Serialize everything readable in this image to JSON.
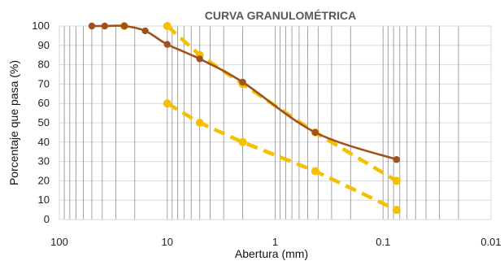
{
  "chart_data": {
    "type": "line",
    "title": "CURVA GRANULOMÉTRICA",
    "xlabel": "Abertura (mm)",
    "ylabel": "Porcentaje que pasa  (%)",
    "x_scale": "log",
    "x_reversed": true,
    "xlim": [
      100,
      0.01
    ],
    "ylim": [
      0,
      100
    ],
    "x_tick_labels": [
      "100",
      "10",
      "1",
      "0.1",
      "0.01"
    ],
    "x_tick_values": [
      100,
      10,
      1,
      0.1,
      0.01
    ],
    "y_tick_labels": [
      "0",
      "10",
      "20",
      "30",
      "40",
      "50",
      "60",
      "70",
      "80",
      "90",
      "100"
    ],
    "y_tick_values": [
      0,
      10,
      20,
      30,
      40,
      50,
      60,
      70,
      80,
      90,
      100
    ],
    "grid": true,
    "legend": "none",
    "series": [
      {
        "color": "#A0521D",
        "style": "solid-with-markers",
        "x": [
          50,
          38,
          25,
          16,
          10,
          5,
          2,
          0.425,
          0.075
        ],
        "y": [
          100,
          100,
          100,
          97.5,
          90.5,
          83,
          71,
          45,
          31
        ]
      },
      {
        "color": "#F5C000",
        "style": "dashed-with-markers",
        "x": [
          10,
          5,
          2,
          0.425,
          0.075
        ],
        "y": [
          100,
          85,
          70,
          45,
          20
        ]
      },
      {
        "color": "#F5C000",
        "style": "dashed-with-markers",
        "x": [
          25
        ],
        "y": [
          100
        ]
      },
      {
        "color": "#F5C000",
        "style": "dashed-with-markers",
        "x": [
          10,
          5,
          2,
          0.425,
          0.075
        ],
        "y": [
          60,
          50,
          40,
          25,
          5
        ]
      }
    ]
  }
}
